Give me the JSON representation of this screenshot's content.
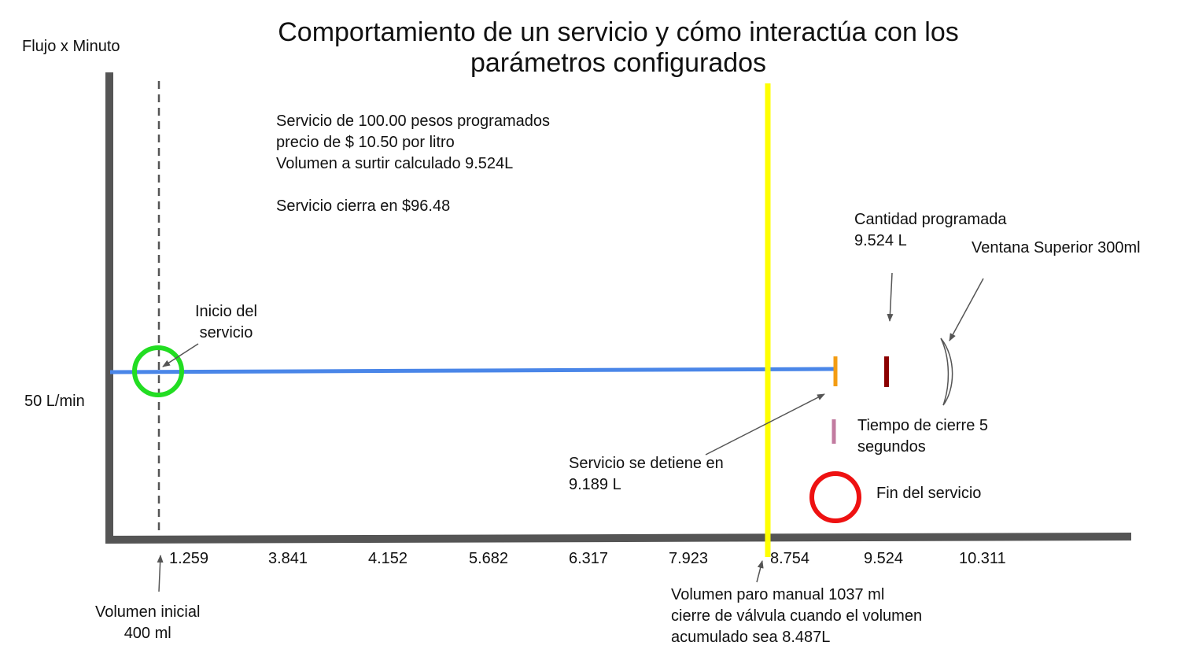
{
  "title": {
    "line1": "Comportamiento de un servicio y cómo interactúa con los",
    "line2": "parámetros configurados"
  },
  "y_axis": {
    "label": "Flujo x Minuto",
    "flow_label": "50 L/min"
  },
  "x_axis": {
    "ticks": [
      "1.259",
      "3.841",
      "4.152",
      "5.682",
      "6.317",
      "7.923",
      "8.754",
      "9.524",
      "10.311"
    ]
  },
  "info_block": {
    "line1": "Servicio de 100.00 pesos programados",
    "line2": "precio de $ 10.50 por litro",
    "line3": "Volumen a surtir calculado 9.524L",
    "line4": "Servicio cierra en $96.48"
  },
  "annotations": {
    "inicio": {
      "line1": "Inicio del",
      "line2": "servicio"
    },
    "cantidad": {
      "line1": "Cantidad programada",
      "line2": "9.524 L"
    },
    "ventana": "Ventana Superior 300ml",
    "tiempo": {
      "line1": "Tiempo de cierre 5",
      "line2": "segundos"
    },
    "detiene": {
      "line1": "Servicio se detiene en",
      "line2": "9.189 L"
    },
    "fin": "Fin del servicio",
    "volumen_inicial": {
      "line1": "Volumen inicial",
      "line2": "400 ml"
    },
    "paro_manual": {
      "line1": "Volumen paro manual 1037 ml",
      "line2": "cierre de válvula cuando el volumen",
      "line3": "acumulado sea 8.487L"
    }
  },
  "colors": {
    "axis": "#555555",
    "flow_line": "#4a86e8",
    "stop_line": "#ffff00",
    "start_circle": "#22dd22",
    "end_circle": "#ee1111",
    "stop_marker": "#f39c12",
    "programmed_marker": "#8b0000",
    "close_time_marker": "#c27ba0"
  }
}
